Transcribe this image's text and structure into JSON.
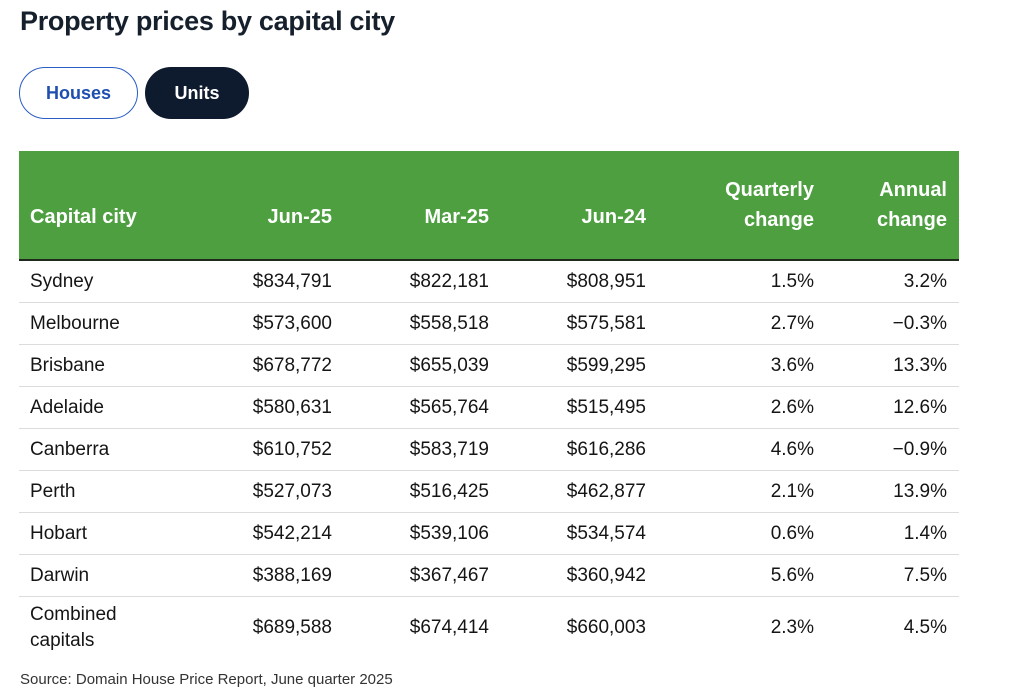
{
  "title": "Property prices by capital city",
  "toggle": {
    "houses_label": "Houses",
    "units_label": "Units",
    "selected": "Units"
  },
  "chart_data": {
    "type": "table",
    "columns": [
      "Capital city",
      "Jun-25",
      "Mar-25",
      "Jun-24",
      "Quarterly change",
      "Annual change"
    ],
    "header_lines": {
      "quarterly": [
        "Quarterly",
        "change"
      ],
      "annual": [
        "Annual",
        "change"
      ]
    },
    "rows": [
      [
        "Sydney",
        "$834,791",
        "$822,181",
        "$808,951",
        "1.5%",
        "3.2%"
      ],
      [
        "Melbourne",
        "$573,600",
        "$558,518",
        "$575,581",
        "2.7%",
        "−0.3%"
      ],
      [
        "Brisbane",
        "$678,772",
        "$655,039",
        "$599,295",
        "3.6%",
        "13.3%"
      ],
      [
        "Adelaide",
        "$580,631",
        "$565,764",
        "$515,495",
        "2.6%",
        "12.6%"
      ],
      [
        "Canberra",
        "$610,752",
        "$583,719",
        "$616,286",
        "4.6%",
        "−0.9%"
      ],
      [
        "Perth",
        "$527,073",
        "$516,425",
        "$462,877",
        "2.1%",
        "13.9%"
      ],
      [
        "Hobart",
        "$542,214",
        "$539,106",
        "$534,574",
        "0.6%",
        "1.4%"
      ],
      [
        "Darwin",
        "$388,169",
        "$367,467",
        "$360,942",
        "5.6%",
        "7.5%"
      ],
      [
        "Combined capitals",
        "$689,588",
        "$674,414",
        "$660,003",
        "2.3%",
        "4.5%"
      ]
    ]
  },
  "colors": {
    "header_bg": "#4d9f40",
    "selected_toggle_bg": "#0e1a2e",
    "unselected_toggle_text": "#1e4fb0"
  },
  "source": "Source: Domain House Price Report, June quarter 2025"
}
